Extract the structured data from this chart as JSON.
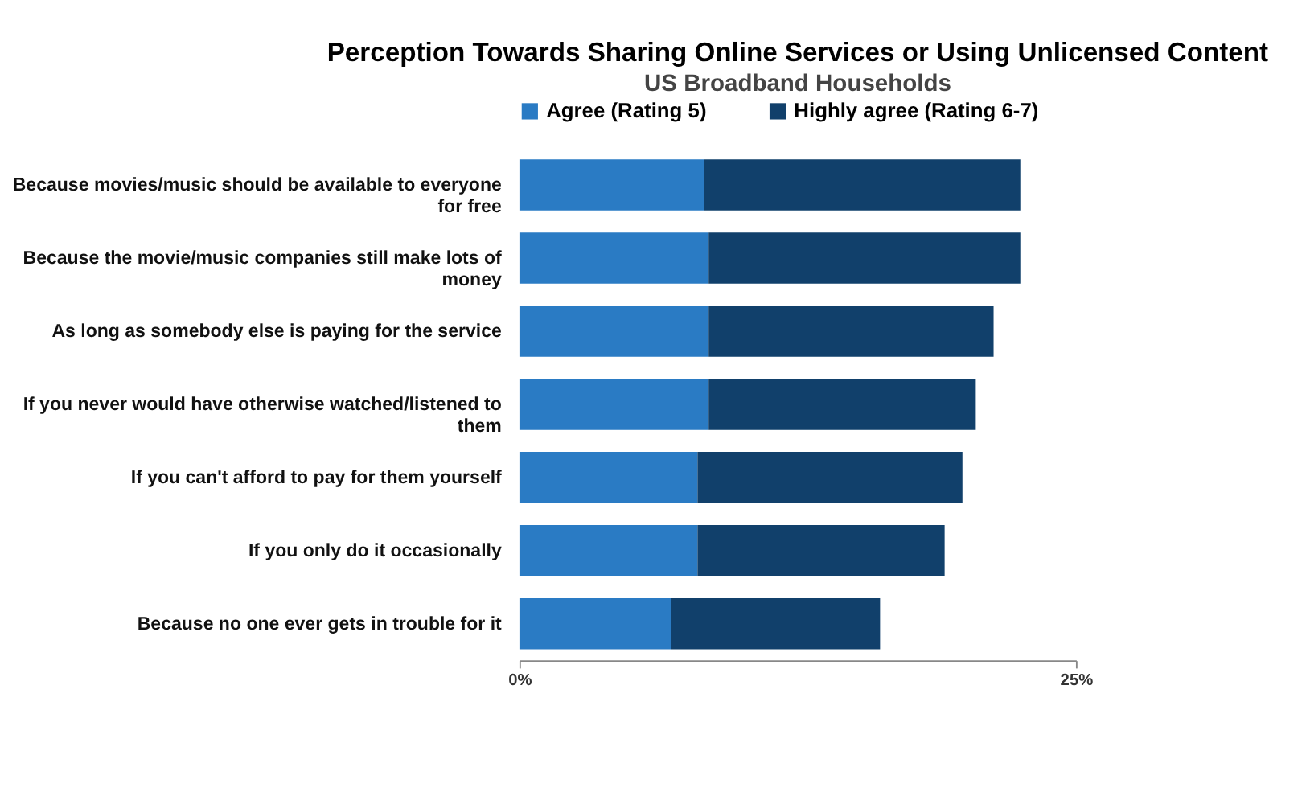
{
  "chart_data": {
    "type": "bar",
    "orientation": "horizontal",
    "stacked": true,
    "title": "Perception Towards Sharing Online Services or Using Unlicensed Content",
    "subtitle": "US Broadband Households",
    "categories": [
      "Because movies/music should be available to everyone for free",
      "Because the movie/music companies still make lots of money",
      "As long as somebody else is paying for the service",
      "If you never would have otherwise watched/listened to them",
      "If you can't afford to pay for them yourself",
      "If you only do it occasionally",
      "Because no one ever gets in trouble for it"
    ],
    "series": [
      {
        "name": "Agree (Rating 5)",
        "color": "#2a7bc4",
        "values": [
          8.3,
          8.5,
          8.5,
          8.5,
          8.0,
          8.0,
          6.8
        ]
      },
      {
        "name": "Highly agree (Rating 6-7)",
        "color": "#11406b",
        "values": [
          14.2,
          14.0,
          12.8,
          12.0,
          11.9,
          11.1,
          9.4
        ]
      }
    ],
    "xlim": [
      0,
      25
    ],
    "xticks": [
      {
        "value": 0,
        "label": "0%"
      },
      {
        "value": 25,
        "label": "25%"
      }
    ],
    "grid": false,
    "legend": "top"
  }
}
